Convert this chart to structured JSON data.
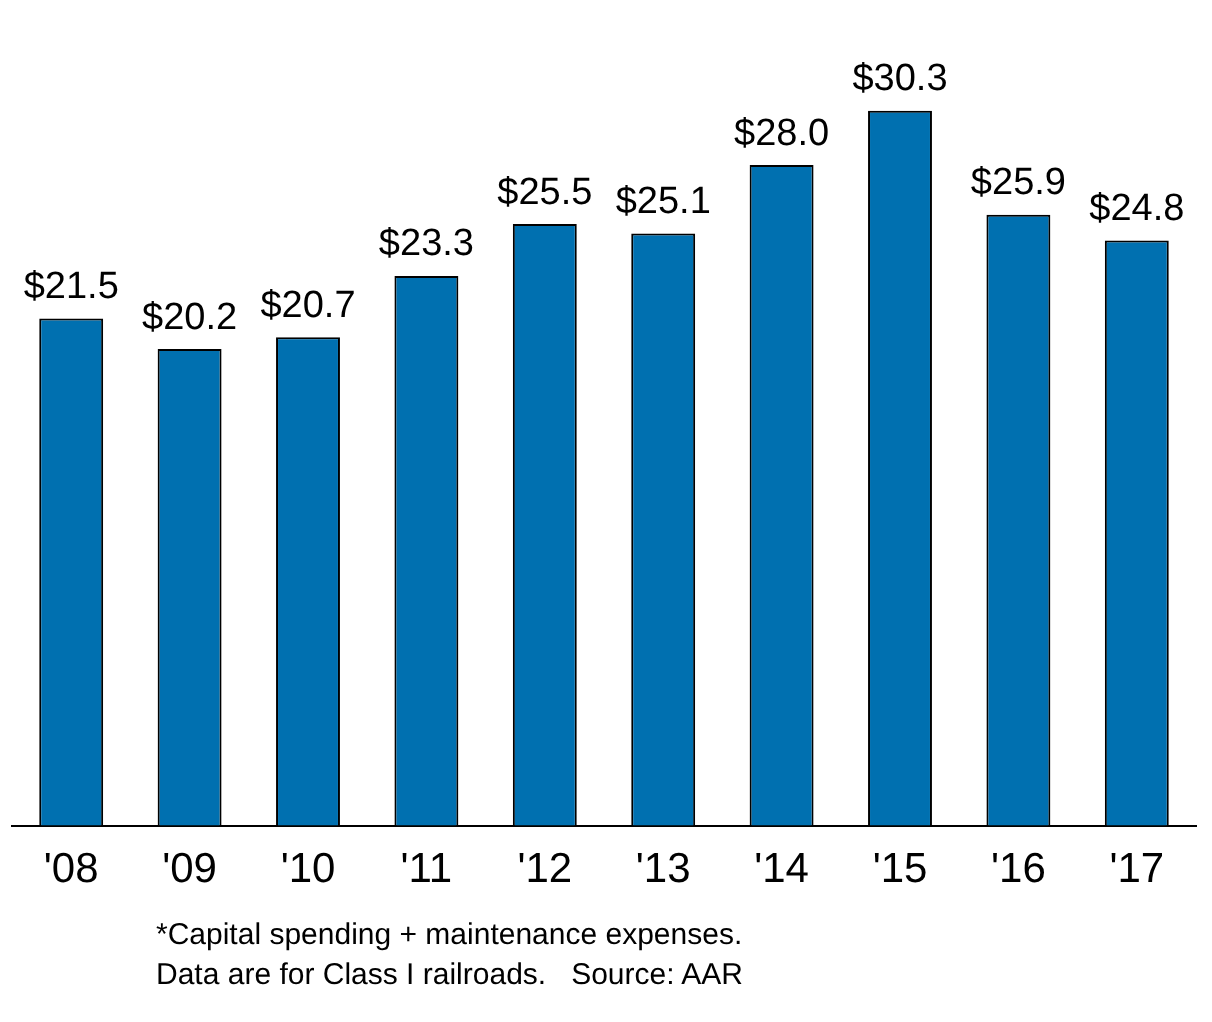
{
  "chart_data": {
    "type": "bar",
    "categories": [
      "'08",
      "'09",
      "'10",
      "'11",
      "'12",
      "'13",
      "'14",
      "'15",
      "'16",
      "'17"
    ],
    "values": [
      21.5,
      20.2,
      20.7,
      23.3,
      25.5,
      25.1,
      28.0,
      30.3,
      25.9,
      24.8
    ],
    "value_labels": [
      "$21.5",
      "$20.2",
      "$20.7",
      "$23.3",
      "$25.5",
      "$25.1",
      "$28.0",
      "$30.3",
      "$25.9",
      "$24.8"
    ],
    "color": "#0070b0",
    "tick_labels": "x",
    "grid": false,
    "legend": false,
    "annotations": [
      "*Capital spending + maintenance expenses.",
      "Data are for Class I railroads.   Source: AAR"
    ]
  }
}
